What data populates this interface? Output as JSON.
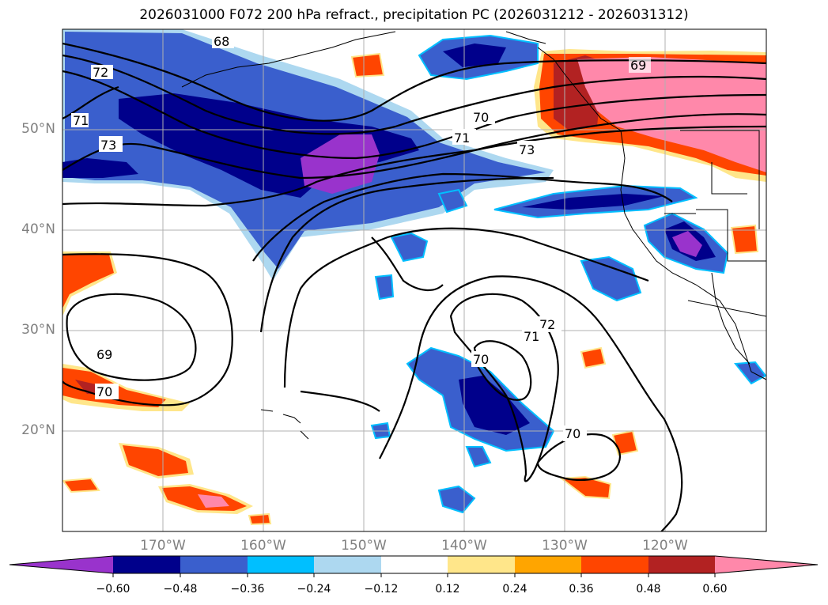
{
  "title": "2026031000 F072 200 hPa refract., precipitation PC (2026031212 - 2026031312)",
  "lat_labels": [
    "50°N",
    "40°N",
    "30°N",
    "20°N"
  ],
  "lon_labels": [
    "170°W",
    "160°W",
    "150°W",
    "140°W",
    "130°W",
    "120°W"
  ],
  "colorbar": {
    "tick_labels": [
      "−0.60",
      "−0.48",
      "−0.36",
      "−0.24",
      "−0.12",
      "0.12",
      "0.24",
      "0.36",
      "0.48",
      "0.60"
    ],
    "colors": [
      "#9933cc",
      "#00008b",
      "#3a5fcd",
      "#00bfff",
      "#add8f0",
      "#ffffff",
      "#ffe68a",
      "#ffa500",
      "#ff4500",
      "#b22222",
      "#ff88aa"
    ]
  },
  "contour_labels": [
    "68",
    "72",
    "71",
    "73",
    "70",
    "71",
    "73",
    "69",
    "72",
    "71",
    "70",
    "69",
    "70",
    "70"
  ]
}
